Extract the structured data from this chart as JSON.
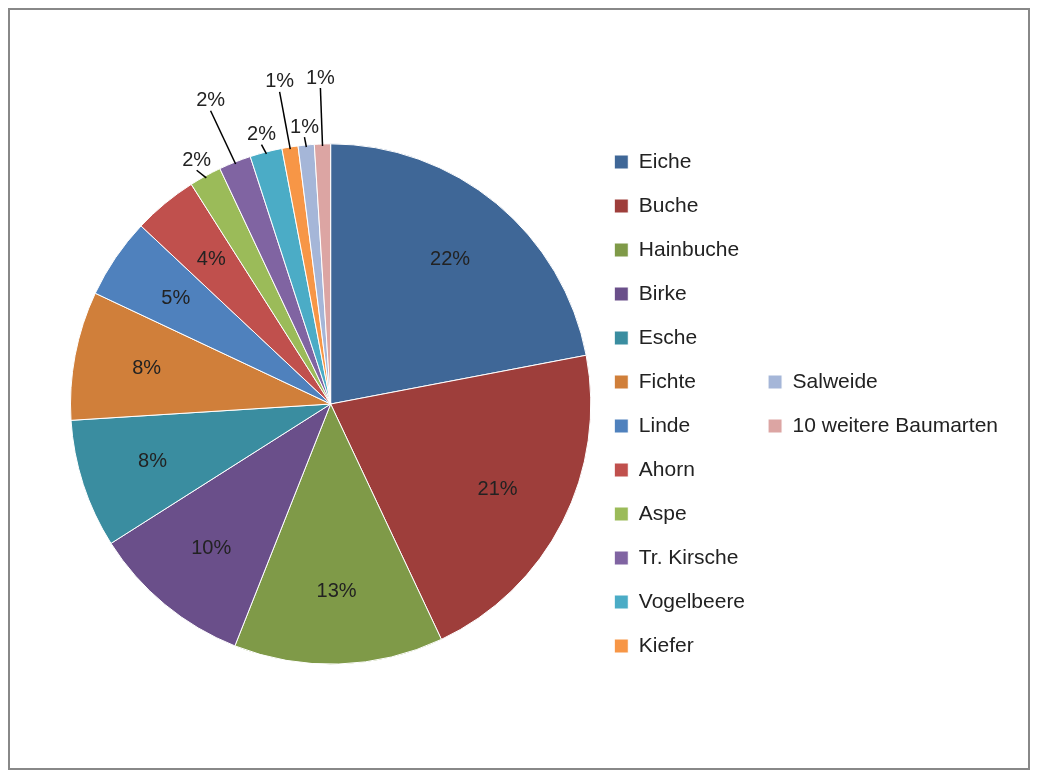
{
  "chart_data": {
    "type": "pie",
    "categories": [
      "Eiche",
      "Buche",
      "Hainbuche",
      "Birke",
      "Esche",
      "Fichte",
      "Linde",
      "Ahorn",
      "Aspe",
      "Tr. Kirsche",
      "Vogelbeere",
      "Kiefer",
      "Salweide",
      "10 weitere Baumarten"
    ],
    "values": [
      22,
      21,
      13,
      10,
      8,
      8,
      5,
      4,
      2,
      2,
      2,
      1,
      1,
      1
    ],
    "colors": [
      "#3f6797",
      "#9e3e3b",
      "#7f9a48",
      "#6a4f8a",
      "#3a8da0",
      "#d07f3a",
      "#4f81bd",
      "#c0504d",
      "#9bbb59",
      "#8064a2",
      "#4bacc6",
      "#f79646",
      "#a5b6d8",
      "#dca5a3"
    ],
    "value_labels": [
      "22%",
      "21%",
      "13%",
      "10%",
      "8%",
      "8%",
      "5%",
      "4%",
      "2%",
      "2%",
      "2%",
      "1%",
      "1%",
      "1%"
    ],
    "legend": "right"
  }
}
